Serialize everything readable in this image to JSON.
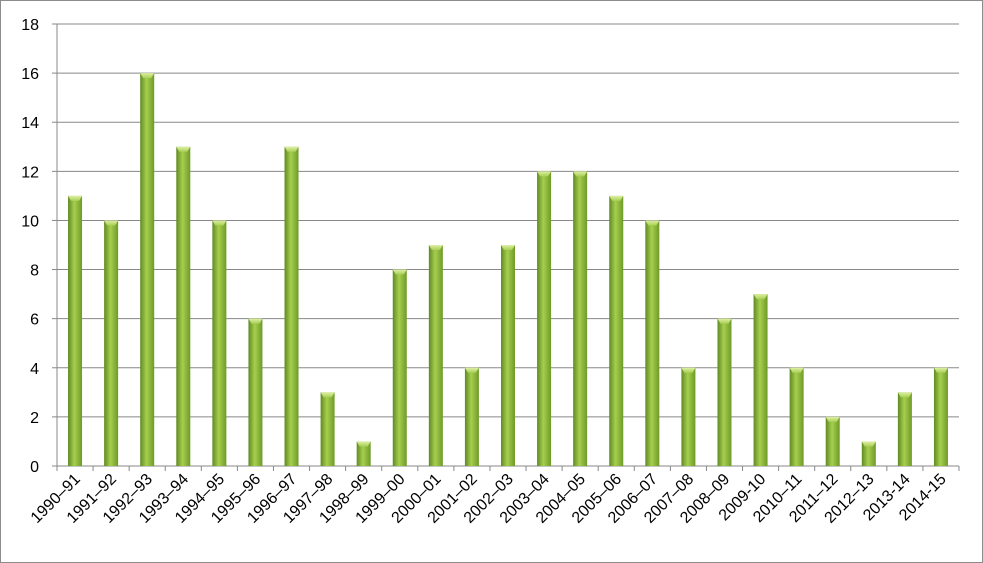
{
  "chart_data": {
    "type": "bar",
    "title": "",
    "xlabel": "",
    "ylabel": "",
    "categories": [
      "1990–91",
      "1991–92",
      "1992–93",
      "1993–94",
      "1994–95",
      "1995–96",
      "1996–97",
      "1997–98",
      "1998–99",
      "1999–00",
      "2000–01",
      "2001–02",
      "2002–03",
      "2003–04",
      "2004–05",
      "2005–06",
      "2006–07",
      "2007–08",
      "2008–09",
      "2009-10",
      "2010–11",
      "2011–12",
      "2012–13",
      "2013-14",
      "2014-15"
    ],
    "values": [
      11,
      10,
      16,
      13,
      10,
      6,
      13,
      3,
      1,
      8,
      9,
      4,
      9,
      12,
      12,
      11,
      10,
      4,
      6,
      7,
      4,
      2,
      1,
      3,
      4
    ],
    "ylim": [
      0,
      18
    ],
    "yticks": [
      "0",
      "2",
      "4",
      "6",
      "8",
      "10",
      "12",
      "14",
      "16",
      "18"
    ],
    "grid": true,
    "legend": "none",
    "bar_color": "#8cb43a"
  }
}
